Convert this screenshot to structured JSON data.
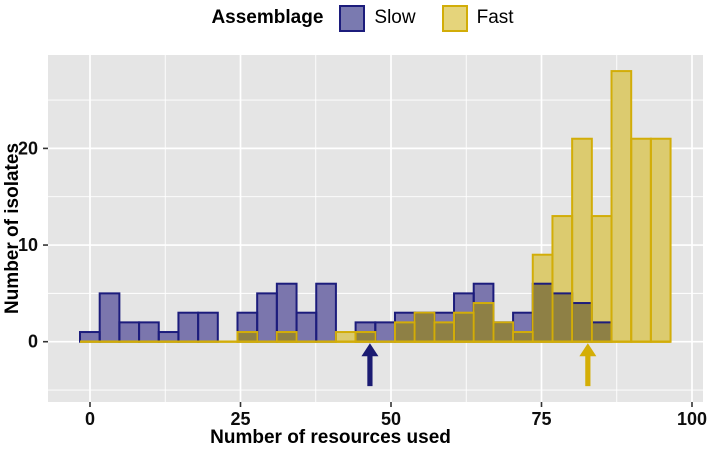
{
  "legend": {
    "title": "Assemblage",
    "items": [
      {
        "label": "Slow",
        "fill": "#7a7ab0",
        "stroke": "#1c1c7c"
      },
      {
        "label": "Fast",
        "fill": "#e5d47b",
        "stroke": "#d2ad08"
      }
    ]
  },
  "axes": {
    "x": {
      "title": "Number of resources used",
      "tick_values": [
        0,
        25,
        50,
        75,
        100
      ],
      "tick_labels": [
        "0",
        "25",
        "50",
        "75",
        "100"
      ],
      "minor_values": [
        12.5,
        37.5,
        62.5,
        87.5
      ],
      "range": [
        -6.8,
        101.8
      ]
    },
    "y": {
      "title": "Number of isolates",
      "tick_values": [
        0,
        10,
        20
      ],
      "tick_labels": [
        "0",
        "10",
        "20"
      ],
      "minor_values": [
        -5,
        5,
        15,
        25
      ],
      "range": [
        -6.2,
        29.4
      ]
    }
  },
  "chart_data": {
    "type": "histogram",
    "title": "",
    "xlabel": "Number of resources used",
    "ylabel": "Number of isolates",
    "legend_position": "top",
    "grid": true,
    "bin_start": -1.66,
    "bin_width": 3.27,
    "bin_count": 30,
    "series": [
      {
        "name": "Slow",
        "counts": [
          1,
          5,
          2,
          2,
          1,
          3,
          3,
          0,
          3,
          5,
          6,
          3,
          6,
          0,
          2,
          2,
          3,
          3,
          3,
          5,
          6,
          2,
          3,
          6,
          5,
          4,
          2,
          0,
          0,
          0
        ]
      },
      {
        "name": "Fast",
        "counts": [
          0,
          0,
          0,
          0,
          0,
          0,
          0,
          0,
          1,
          0,
          1,
          0,
          0,
          1,
          1,
          0,
          2,
          3,
          2,
          3,
          4,
          2,
          1,
          9,
          13,
          21,
          13,
          28,
          21,
          21
        ]
      }
    ],
    "annotations": [
      {
        "type": "arrow",
        "series": "Slow",
        "x": 46.5,
        "y_from": -4.6,
        "y_to": 0
      },
      {
        "type": "arrow",
        "series": "Fast",
        "x": 82.7,
        "y_from": -4.6,
        "y_to": 0
      }
    ],
    "xlim": [
      -6.8,
      101.8
    ],
    "ylim": [
      -6.2,
      29.4
    ]
  },
  "colors": {
    "slow_fill": "#7b76ad",
    "slow_stroke": "#1c1c7c",
    "fast_fill": "#dccb6f",
    "fast_stroke": "#d2ad08",
    "overlap_fill": "#8e8045",
    "panel_bg": "#e5e5e5",
    "grid": "#ffffff",
    "tick_mark": "#333333",
    "tick_label": "#0d0d0d",
    "axis_title": "#000000",
    "arrow_slow": "#1b1b72",
    "arrow_fast": "#d4ae06"
  }
}
